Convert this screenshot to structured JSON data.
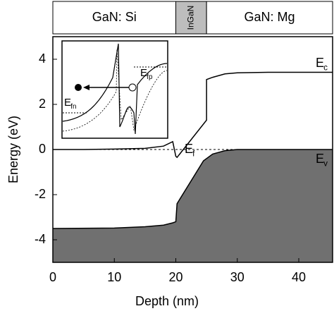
{
  "chart_data": {
    "type": "line",
    "x_label": "Depth (nm)",
    "y_label": "Energy (eV)",
    "xlim": [
      0,
      45.5
    ],
    "ylim": [
      -5,
      5
    ],
    "xticks": [
      0,
      10,
      20,
      30,
      40
    ],
    "yticks": [
      -4,
      -2,
      0,
      2,
      4
    ],
    "regions": [
      {
        "label": "GaN: Si",
        "x": [
          0,
          20
        ]
      },
      {
        "label": "InGaN",
        "x": [
          20,
          25
        ]
      },
      {
        "label": "GaN: Mg",
        "x": [
          25,
          45.5
        ]
      }
    ],
    "series": [
      {
        "name": "Ec",
        "color": "#000000",
        "x": [
          0,
          5,
          10,
          15,
          18,
          19.5,
          20,
          20.2,
          25,
          25,
          26,
          28,
          30,
          35,
          45.5
        ],
        "values": [
          0,
          0,
          0.02,
          0.05,
          0.15,
          0.35,
          -0.3,
          -0.35,
          1.3,
          3.1,
          3.2,
          3.35,
          3.4,
          3.42,
          3.42
        ]
      },
      {
        "name": "Ev",
        "color": "#000000",
        "fill": "#707070",
        "x": [
          0,
          10,
          15,
          18,
          19.5,
          20,
          20.2,
          24.5,
          26,
          28,
          30,
          45.5
        ],
        "values": [
          -3.5,
          -3.48,
          -3.42,
          -3.35,
          -3.25,
          -3.2,
          -2.4,
          -0.5,
          -0.2,
          -0.05,
          0,
          0
        ]
      }
    ],
    "fermi_level": 0,
    "annotations": [
      {
        "text": "E",
        "sub": "c"
      },
      {
        "text": "E",
        "sub": "v"
      },
      {
        "text": "E",
        "sub": "f"
      }
    ],
    "inset_labels": [
      {
        "text": "E",
        "sub": "fn"
      },
      {
        "text": "E",
        "sub": "fp"
      }
    ]
  }
}
